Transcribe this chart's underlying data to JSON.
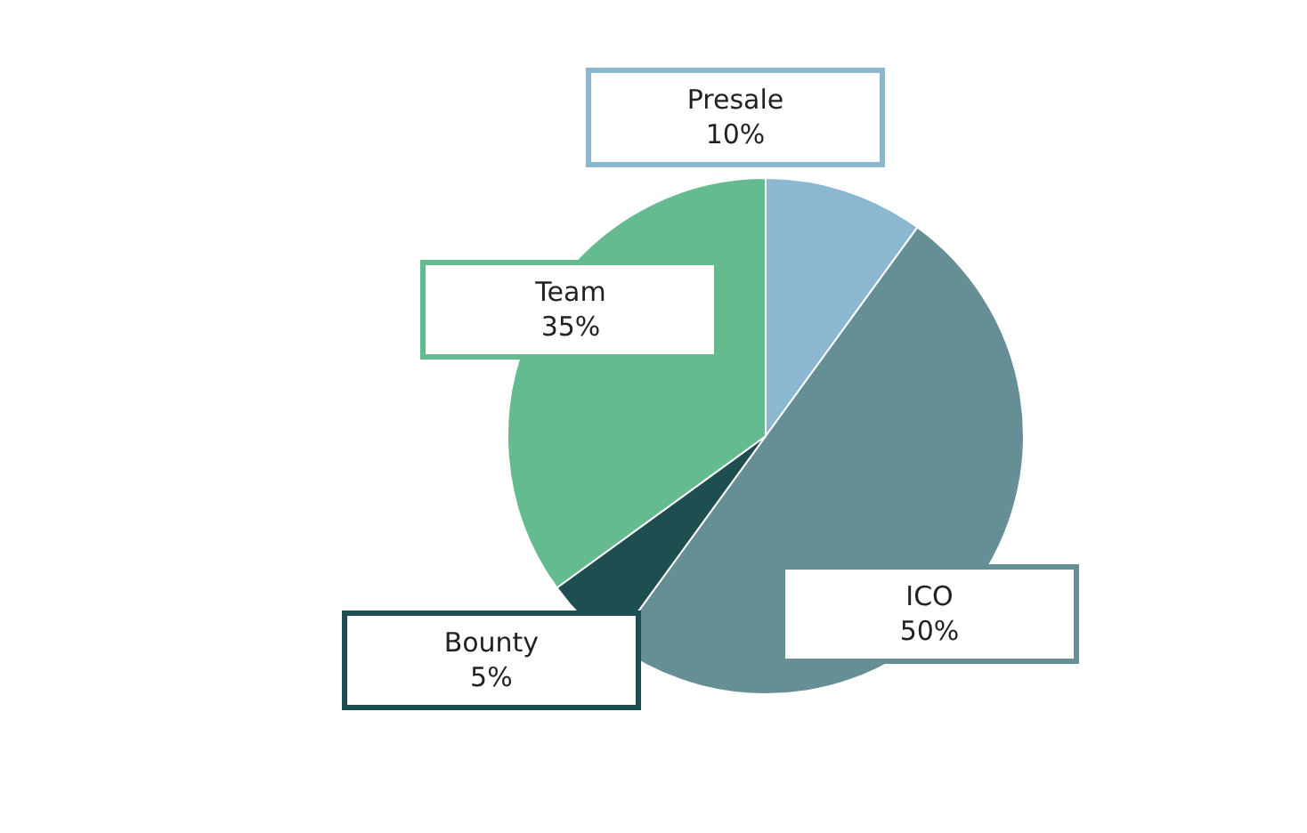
{
  "chart_data": {
    "type": "pie",
    "categories": [
      "Presale",
      "ICO",
      "Bounty",
      "Team"
    ],
    "values": [
      10,
      50,
      5,
      35
    ],
    "colors": [
      "#8bb8d0",
      "#668f95",
      "#1f4e50",
      "#63bb8f"
    ],
    "value_labels": [
      "10%",
      "50%",
      "5%",
      "35%"
    ],
    "legend": false
  }
}
